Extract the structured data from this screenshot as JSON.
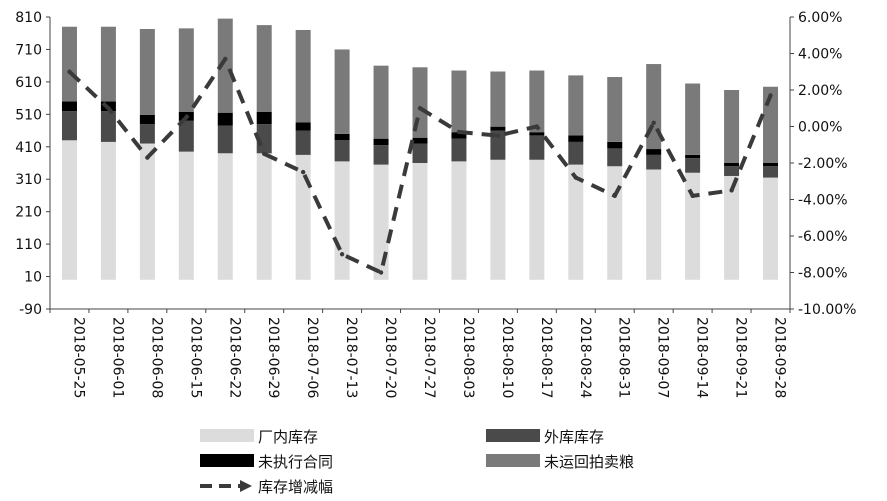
{
  "chart_data": {
    "type": "bar",
    "stacked": true,
    "categories": [
      "2018-05-25",
      "2018-06-01",
      "2018-06-08",
      "2018-06-15",
      "2018-06-22",
      "2018-06-29",
      "2018-07-06",
      "2018-07-13",
      "2018-07-20",
      "2018-07-27",
      "2018-08-03",
      "2018-08-10",
      "2018-08-17",
      "2018-08-24",
      "2018-08-31",
      "2018-09-07",
      "2018-09-14",
      "2018-09-21",
      "2018-09-28"
    ],
    "series": [
      {
        "name": "厂内库存",
        "color": "#dcdcdc",
        "values": [
          430,
          425,
          420,
          395,
          390,
          390,
          385,
          365,
          355,
          360,
          365,
          370,
          370,
          355,
          350,
          340,
          330,
          320,
          315
        ]
      },
      {
        "name": "外库库存",
        "color": "#4a4a4a",
        "values": [
          90,
          95,
          60,
          95,
          85,
          90,
          75,
          65,
          60,
          60,
          70,
          90,
          75,
          70,
          55,
          45,
          45,
          30,
          35
        ]
      },
      {
        "name": "未执行合同",
        "color": "#000000",
        "values": [
          30,
          30,
          28,
          28,
          40,
          38,
          25,
          20,
          20,
          18,
          20,
          12,
          10,
          20,
          20,
          18,
          10,
          10,
          10
        ]
      },
      {
        "name": "未运回拍卖粮",
        "color": "#7a7a7a",
        "values": [
          230,
          230,
          265,
          257,
          290,
          267,
          285,
          260,
          225,
          217,
          190,
          170,
          190,
          185,
          200,
          262,
          220,
          225,
          235
        ]
      }
    ],
    "line_series": {
      "name": "库存增减幅",
      "color": "#3a3a3a",
      "axis": "right",
      "values": [
        3.0,
        1.0,
        -1.7,
        0.5,
        3.7,
        -1.5,
        -2.5,
        -7.0,
        -8.0,
        1.0,
        -0.3,
        -0.5,
        0.0,
        -2.8,
        -3.8,
        0.2,
        -3.8,
        -3.5,
        1.7
      ]
    },
    "y_left": {
      "ylim": [
        -90,
        810
      ],
      "ticks": [
        "-90",
        "10",
        "110",
        "210",
        "310",
        "410",
        "510",
        "610",
        "710",
        "810"
      ]
    },
    "y_right": {
      "ylim": [
        -10,
        6
      ],
      "ticks": [
        "-10.00%",
        "-8.00%",
        "-6.00%",
        "-4.00%",
        "-2.00%",
        "0.00%",
        "2.00%",
        "4.00%",
        "6.00%"
      ]
    },
    "grid": false,
    "legend_placement": "bottom"
  }
}
